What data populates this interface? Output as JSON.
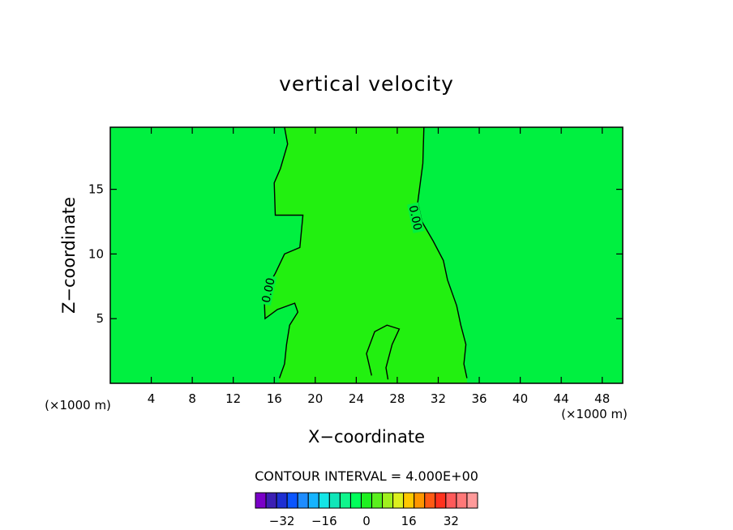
{
  "chart_data": {
    "type": "contour",
    "title": "vertical velocity",
    "xlabel": "X−coordinate",
    "ylabel": "Z−coordinate",
    "x_unit": "(×1000 m)",
    "y_unit": "(×1000 m)",
    "xlim": [
      0,
      50
    ],
    "ylim": [
      0,
      19.8
    ],
    "x_ticks": [
      4,
      8,
      12,
      16,
      20,
      24,
      28,
      32,
      36,
      40,
      44,
      48
    ],
    "y_ticks": [
      5,
      10,
      15
    ],
    "contour_interval_label": "CONTOUR INTERVAL = 4.000E+00",
    "contour_label": "0.00",
    "contour_zero_left": [
      [
        17.0,
        19.8
      ],
      [
        17.3,
        18.5
      ],
      [
        16.6,
        16.6
      ],
      [
        16.0,
        15.5
      ],
      [
        16.1,
        13.0
      ],
      [
        18.8,
        13.0
      ],
      [
        18.5,
        10.5
      ],
      [
        17.0,
        10.0
      ],
      [
        16.1,
        8.5
      ],
      [
        15.0,
        7.0
      ],
      [
        15.1,
        5.0
      ],
      [
        16.3,
        5.7
      ],
      [
        18.0,
        6.2
      ],
      [
        18.3,
        5.5
      ],
      [
        17.5,
        4.5
      ],
      [
        17.2,
        3.0
      ],
      [
        17.0,
        1.5
      ],
      [
        16.5,
        0.4
      ]
    ],
    "contour_zero_right": [
      [
        30.6,
        19.8
      ],
      [
        30.5,
        17.0
      ],
      [
        30.0,
        14.0
      ],
      [
        30.4,
        12.5
      ],
      [
        31.5,
        11.0
      ],
      [
        32.5,
        9.5
      ],
      [
        32.9,
        8.0
      ],
      [
        33.8,
        6.0
      ],
      [
        34.2,
        4.5
      ],
      [
        34.7,
        3.0
      ],
      [
        34.5,
        1.5
      ],
      [
        34.8,
        0.4
      ]
    ],
    "contour_inner": [
      [
        25.5,
        0.6
      ],
      [
        25.0,
        2.3
      ],
      [
        25.8,
        4.0
      ],
      [
        27.0,
        4.5
      ],
      [
        28.2,
        4.2
      ],
      [
        27.5,
        3.0
      ],
      [
        26.9,
        1.2
      ],
      [
        27.1,
        0.3
      ]
    ],
    "colorbar": {
      "colors": [
        "#7a00c8",
        "#3c1fb4",
        "#1e2fd2",
        "#0a55ff",
        "#1e8cff",
        "#16b4ff",
        "#14e6e6",
        "#0fe6b9",
        "#0ff58c",
        "#00ff5a",
        "#1ef020",
        "#5af01e",
        "#a0f01e",
        "#dcf01e",
        "#ffc800",
        "#ff9600",
        "#ff5a14",
        "#ff321e",
        "#ff5a5a",
        "#ff7878",
        "#ff9a9a"
      ],
      "tick_values": [
        -32,
        -16,
        0,
        16,
        32
      ],
      "tick_labels": [
        "−32",
        "−16",
        "0",
        "16",
        "32"
      ]
    }
  }
}
